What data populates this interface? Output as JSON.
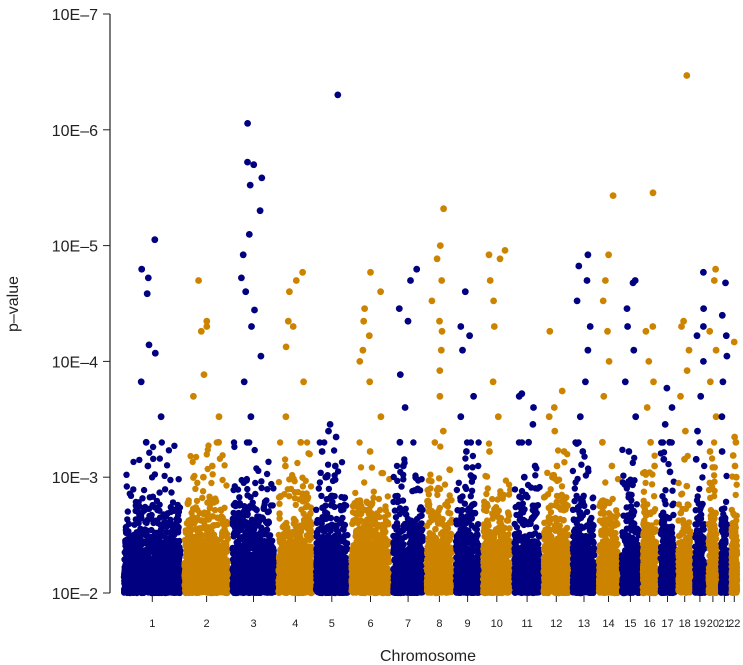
{
  "chart_data": {
    "type": "scatter",
    "title": "",
    "xlabel": "Chromosome",
    "ylabel": "p–value",
    "y_scale": "log",
    "ylim": [
      0.01,
      1e-07
    ],
    "y_ticks": [
      {
        "value": 0.01,
        "label": "10E–2"
      },
      {
        "value": 0.001,
        "label": "10E–3"
      },
      {
        "value": 0.0001,
        "label": "10E–4"
      },
      {
        "value": 1e-05,
        "label": "10E–5"
      },
      {
        "value": 1e-06,
        "label": "10E–6"
      },
      {
        "value": 1e-07,
        "label": "10E–7"
      }
    ],
    "colors": {
      "odd": "#000080",
      "even": "#CC8400"
    },
    "chromosomes": [
      {
        "label": "1",
        "top_p": [
          8.9e-06,
          1.6e-05,
          1.9e-05,
          2.6e-05,
          7.2e-05,
          8.5e-05,
          0.00015,
          0.0003,
          0.0005,
          0.0008
        ]
      },
      {
        "label": "2",
        "top_p": [
          2e-05,
          4.5e-05,
          5e-05,
          5.5e-05,
          0.00013,
          0.0002,
          0.0003,
          0.0005,
          0.0008,
          0.001
        ]
      },
      {
        "label": "3",
        "top_p": [
          8.8e-07,
          1.9e-06,
          2e-06,
          2.6e-06,
          3e-06,
          5e-06,
          8e-06,
          1.2e-05,
          1.9e-05,
          2.5e-05,
          3.6e-05,
          5e-05,
          9e-05,
          0.00015,
          0.0003
        ]
      },
      {
        "label": "4",
        "top_p": [
          1.7e-05,
          2e-05,
          2.5e-05,
          4.5e-05,
          5e-05,
          7.5e-05,
          0.00015,
          0.0003,
          0.0005,
          0.0008
        ]
      },
      {
        "label": "5",
        "top_p": [
          5e-07,
          0.00035,
          0.0004,
          0.00045,
          0.0006,
          0.0008,
          0.001
        ]
      },
      {
        "label": "6",
        "top_p": [
          1.7e-05,
          2.5e-05,
          3.5e-05,
          4.5e-05,
          6e-05,
          8e-05,
          0.0001,
          0.00015,
          0.0003,
          0.0006
        ]
      },
      {
        "label": "7",
        "top_p": [
          1.6e-05,
          2e-05,
          3.5e-05,
          4.5e-05,
          0.00013,
          0.00025,
          0.0005,
          0.0008
        ]
      },
      {
        "label": "8",
        "top_p": [
          4.8e-06,
          1e-05,
          1.3e-05,
          2e-05,
          3e-05,
          4.5e-05,
          5.5e-05,
          8e-05,
          0.00012,
          0.0002,
          0.0004
        ]
      },
      {
        "label": "9",
        "top_p": [
          2.5e-05,
          5e-05,
          6e-05,
          8e-05,
          0.0002,
          0.0003,
          0.0006,
          0.001
        ]
      },
      {
        "label": "10",
        "top_p": [
          1.1e-05,
          1.2e-05,
          1.3e-05,
          2e-05,
          3e-05,
          5e-05,
          0.00015,
          0.0003,
          0.0006
        ]
      },
      {
        "label": "11",
        "top_p": [
          0.00019,
          0.0002,
          0.00025,
          0.00035,
          0.0005,
          0.0008,
          0.001
        ]
      },
      {
        "label": "12",
        "top_p": [
          5.5e-05,
          0.00018,
          0.00025,
          0.0003,
          0.0004,
          0.0006,
          0.0008,
          0.001
        ]
      },
      {
        "label": "13",
        "top_p": [
          1.2e-05,
          1.5e-05,
          2e-05,
          3e-05,
          5e-05,
          8e-05,
          0.00015,
          0.0003,
          0.0006
        ]
      },
      {
        "label": "14",
        "top_p": [
          3.7e-06,
          1.2e-05,
          2e-05,
          3e-05,
          5.5e-05,
          0.0001,
          0.0002,
          0.0005,
          0.0008
        ]
      },
      {
        "label": "15",
        "top_p": [
          2e-05,
          2.1e-05,
          3.5e-05,
          5e-05,
          8e-05,
          0.00015,
          0.0003,
          0.0006
        ]
      },
      {
        "label": "16",
        "top_p": [
          3.5e-06,
          5e-05,
          5.5e-05,
          0.0001,
          0.00015,
          0.00025,
          0.0005,
          0.0008
        ]
      },
      {
        "label": "17",
        "top_p": [
          0.00017,
          0.00025,
          0.00035,
          0.0005,
          0.0007,
          0.0009
        ]
      },
      {
        "label": "18",
        "top_p": [
          3.4e-07,
          4.5e-05,
          5e-05,
          8e-05,
          0.00012,
          0.0002,
          0.0004,
          0.0007
        ]
      },
      {
        "label": "19",
        "top_p": [
          1.7e-05,
          3.5e-05,
          5e-05,
          6e-05,
          0.0001,
          0.0002,
          0.0004,
          0.0007
        ]
      },
      {
        "label": "20",
        "top_p": [
          1.6e-05,
          2e-05,
          5.5e-05,
          8e-05,
          0.00015,
          0.0003,
          0.0006
        ]
      },
      {
        "label": "21",
        "top_p": [
          2.1e-05,
          4e-05,
          6e-05,
          9e-05,
          0.00015,
          0.0003,
          0.0006
        ]
      },
      {
        "label": "22",
        "top_p": [
          6.8e-05,
          0.00045,
          0.0005,
          0.00065,
          0.0008,
          0.001
        ]
      }
    ]
  }
}
